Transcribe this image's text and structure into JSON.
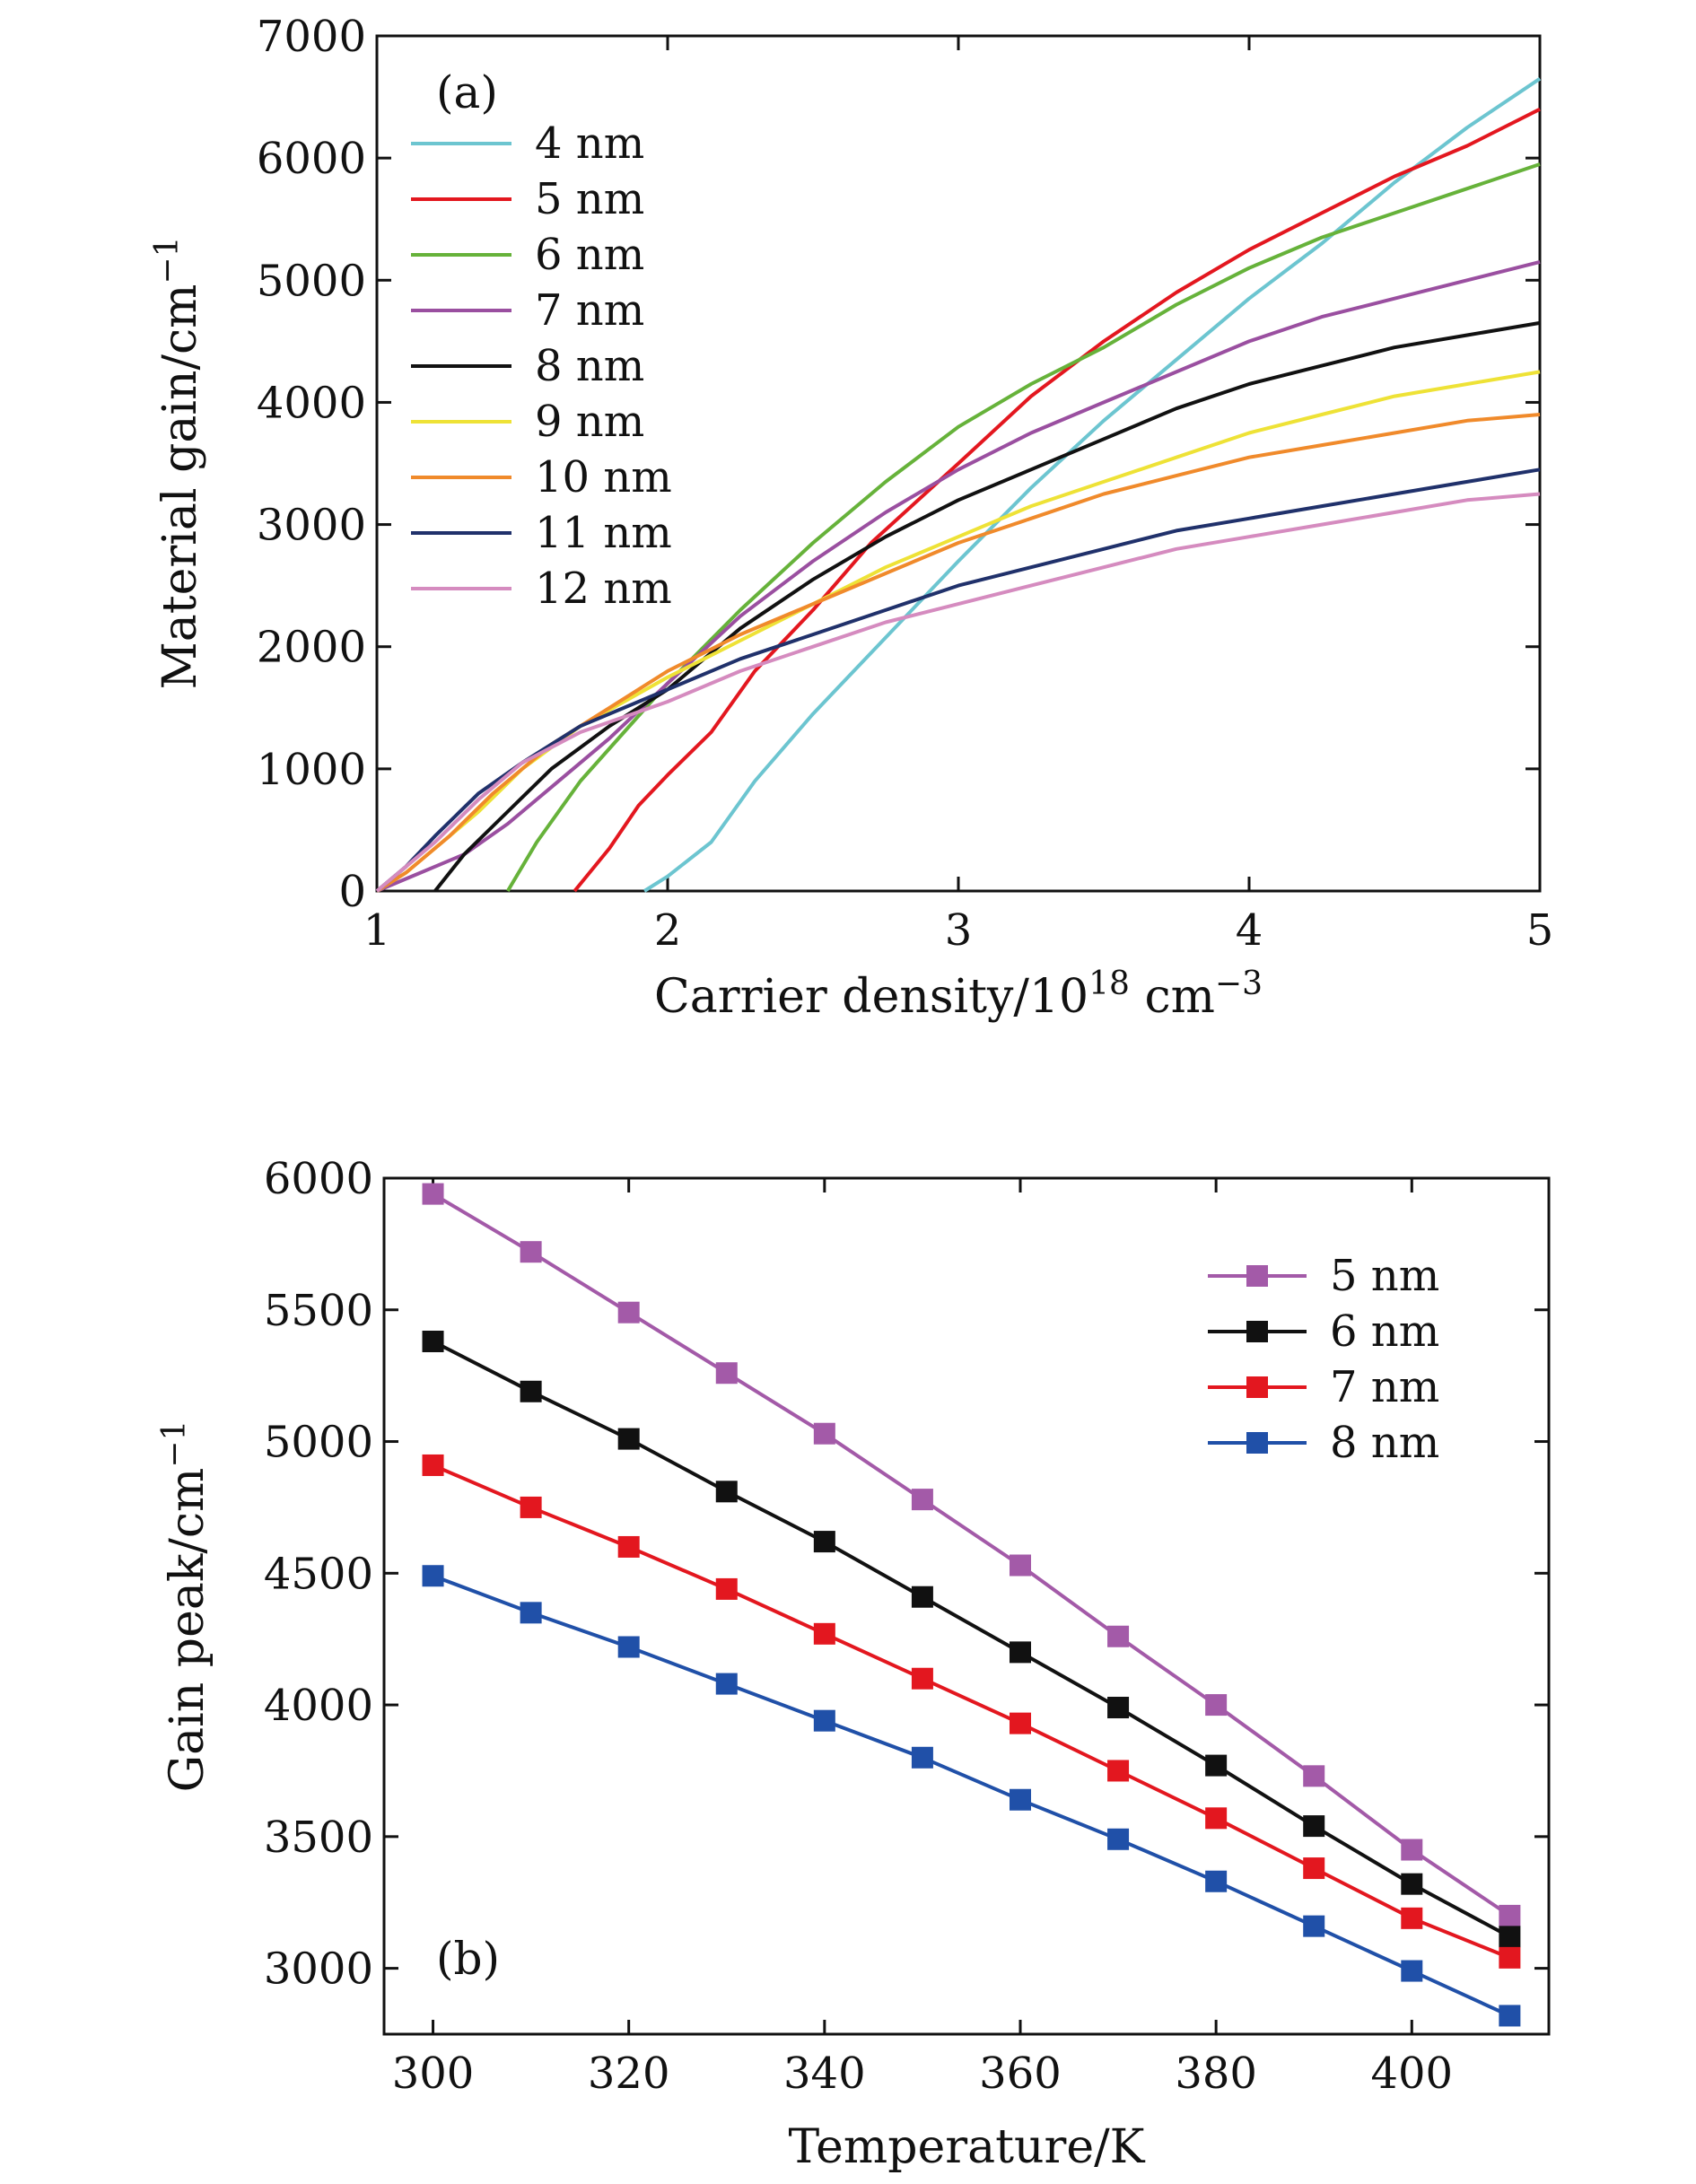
{
  "chart_data": [
    {
      "type": "line",
      "panel_label": "(a)",
      "xlabel": "Carrier density/10",
      "xlabel_sup": "18",
      "xlabel_unit": " cm",
      "xlabel_unit_sup": "−3",
      "ylabel": "Material gain/cm",
      "ylabel_sup": "−1",
      "xlim": [
        1,
        5
      ],
      "ylim": [
        0,
        7000
      ],
      "xticks": [
        "1",
        "2",
        "3",
        "4",
        "5"
      ],
      "yticks": [
        "0",
        "1000",
        "2000",
        "3000",
        "4000",
        "5000",
        "6000",
        "7000"
      ],
      "legend_position": "top-left",
      "series": [
        {
          "name": "4 nm",
          "color": "#6cc5d0",
          "points": [
            [
              1.92,
              0
            ],
            [
              2.0,
              120
            ],
            [
              2.15,
              400
            ],
            [
              2.3,
              900
            ],
            [
              2.5,
              1450
            ],
            [
              2.7,
              1950
            ],
            [
              3.0,
              2700
            ],
            [
              3.25,
              3300
            ],
            [
              3.5,
              3850
            ],
            [
              3.75,
              4350
            ],
            [
              4.0,
              4850
            ],
            [
              4.25,
              5300
            ],
            [
              4.5,
              5800
            ],
            [
              4.75,
              6250
            ],
            [
              5.0,
              6650
            ]
          ]
        },
        {
          "name": "5 nm",
          "color": "#e3171f",
          "points": [
            [
              1.68,
              0
            ],
            [
              1.8,
              350
            ],
            [
              1.9,
              700
            ],
            [
              2.0,
              950
            ],
            [
              2.15,
              1300
            ],
            [
              2.3,
              1800
            ],
            [
              2.5,
              2300
            ],
            [
              2.7,
              2850
            ],
            [
              3.0,
              3500
            ],
            [
              3.25,
              4050
            ],
            [
              3.5,
              4500
            ],
            [
              3.75,
              4900
            ],
            [
              4.0,
              5250
            ],
            [
              4.25,
              5550
            ],
            [
              4.5,
              5850
            ],
            [
              4.75,
              6100
            ],
            [
              5.0,
              6400
            ]
          ]
        },
        {
          "name": "6 nm",
          "color": "#66b23a",
          "points": [
            [
              1.45,
              0
            ],
            [
              1.55,
              400
            ],
            [
              1.7,
              900
            ],
            [
              1.85,
              1300
            ],
            [
              2.0,
              1700
            ],
            [
              2.25,
              2300
            ],
            [
              2.5,
              2850
            ],
            [
              2.75,
              3350
            ],
            [
              3.0,
              3800
            ],
            [
              3.25,
              4150
            ],
            [
              3.5,
              4450
            ],
            [
              3.75,
              4800
            ],
            [
              4.0,
              5100
            ],
            [
              4.25,
              5350
            ],
            [
              4.5,
              5550
            ],
            [
              4.75,
              5750
            ],
            [
              5.0,
              5950
            ]
          ]
        },
        {
          "name": "7 nm",
          "color": "#9a4fa0",
          "points": [
            [
              1.0,
              0
            ],
            [
              1.15,
              150
            ],
            [
              1.3,
              300
            ],
            [
              1.45,
              550
            ],
            [
              1.6,
              850
            ],
            [
              1.8,
              1250
            ],
            [
              2.0,
              1700
            ],
            [
              2.25,
              2250
            ],
            [
              2.5,
              2700
            ],
            [
              2.75,
              3100
            ],
            [
              3.0,
              3450
            ],
            [
              3.25,
              3750
            ],
            [
              3.5,
              4000
            ],
            [
              3.75,
              4250
            ],
            [
              4.0,
              4500
            ],
            [
              4.25,
              4700
            ],
            [
              4.5,
              4850
            ],
            [
              4.75,
              5000
            ],
            [
              5.0,
              5150
            ]
          ]
        },
        {
          "name": "8 nm",
          "color": "#111111",
          "points": [
            [
              1.2,
              0
            ],
            [
              1.3,
              300
            ],
            [
              1.45,
              650
            ],
            [
              1.6,
              1000
            ],
            [
              1.8,
              1350
            ],
            [
              2.0,
              1650
            ],
            [
              2.25,
              2150
            ],
            [
              2.5,
              2550
            ],
            [
              2.75,
              2900
            ],
            [
              3.0,
              3200
            ],
            [
              3.25,
              3450
            ],
            [
              3.5,
              3700
            ],
            [
              3.75,
              3950
            ],
            [
              4.0,
              4150
            ],
            [
              4.25,
              4300
            ],
            [
              4.5,
              4450
            ],
            [
              4.75,
              4550
            ],
            [
              5.0,
              4650
            ]
          ]
        },
        {
          "name": "9 nm",
          "color": "#eee236",
          "points": [
            [
              1.0,
              0
            ],
            [
              1.1,
              150
            ],
            [
              1.2,
              350
            ],
            [
              1.35,
              650
            ],
            [
              1.5,
              1000
            ],
            [
              1.7,
              1350
            ],
            [
              2.0,
              1750
            ],
            [
              2.25,
              2050
            ],
            [
              2.5,
              2350
            ],
            [
              2.75,
              2650
            ],
            [
              3.0,
              2900
            ],
            [
              3.25,
              3150
            ],
            [
              3.5,
              3350
            ],
            [
              3.75,
              3550
            ],
            [
              4.0,
              3750
            ],
            [
              4.25,
              3900
            ],
            [
              4.5,
              4050
            ],
            [
              4.75,
              4150
            ],
            [
              5.0,
              4250
            ]
          ]
        },
        {
          "name": "10 nm",
          "color": "#f08a2b",
          "points": [
            [
              1.0,
              0
            ],
            [
              1.1,
              150
            ],
            [
              1.25,
              450
            ],
            [
              1.4,
              800
            ],
            [
              1.6,
              1200
            ],
            [
              1.8,
              1500
            ],
            [
              2.0,
              1800
            ],
            [
              2.25,
              2100
            ],
            [
              2.5,
              2350
            ],
            [
              2.75,
              2600
            ],
            [
              3.0,
              2850
            ],
            [
              3.25,
              3050
            ],
            [
              3.5,
              3250
            ],
            [
              3.75,
              3400
            ],
            [
              4.0,
              3550
            ],
            [
              4.25,
              3650
            ],
            [
              4.5,
              3750
            ],
            [
              4.75,
              3850
            ],
            [
              5.0,
              3900
            ]
          ]
        },
        {
          "name": "11 nm",
          "color": "#20316b",
          "points": [
            [
              1.0,
              0
            ],
            [
              1.1,
              200
            ],
            [
              1.2,
              450
            ],
            [
              1.35,
              800
            ],
            [
              1.5,
              1050
            ],
            [
              1.7,
              1350
            ],
            [
              2.0,
              1650
            ],
            [
              2.25,
              1900
            ],
            [
              2.5,
              2100
            ],
            [
              2.75,
              2300
            ],
            [
              3.0,
              2500
            ],
            [
              3.25,
              2650
            ],
            [
              3.5,
              2800
            ],
            [
              3.75,
              2950
            ],
            [
              4.0,
              3050
            ],
            [
              4.25,
              3150
            ],
            [
              4.5,
              3250
            ],
            [
              4.75,
              3350
            ],
            [
              5.0,
              3450
            ]
          ]
        },
        {
          "name": "12 nm",
          "color": "#d58bbf",
          "points": [
            [
              1.0,
              0
            ],
            [
              1.1,
              200
            ],
            [
              1.2,
              400
            ],
            [
              1.35,
              750
            ],
            [
              1.5,
              1050
            ],
            [
              1.7,
              1300
            ],
            [
              2.0,
              1550
            ],
            [
              2.25,
              1800
            ],
            [
              2.5,
              2000
            ],
            [
              2.75,
              2200
            ],
            [
              3.0,
              2350
            ],
            [
              3.25,
              2500
            ],
            [
              3.5,
              2650
            ],
            [
              3.75,
              2800
            ],
            [
              4.0,
              2900
            ],
            [
              4.25,
              3000
            ],
            [
              4.5,
              3100
            ],
            [
              4.75,
              3200
            ],
            [
              5.0,
              3250
            ]
          ]
        }
      ]
    },
    {
      "type": "line",
      "panel_label": "(b)",
      "xlabel": "Temperature/K",
      "ylabel": "Gain peak/cm",
      "ylabel_sup": "−1",
      "xlim": [
        295,
        414
      ],
      "ylim": [
        2750,
        6000
      ],
      "xticks": [
        "300",
        "320",
        "340",
        "360",
        "380",
        "400"
      ],
      "yticks": [
        "3000",
        "3500",
        "4000",
        "4500",
        "5000",
        "5500",
        "6000"
      ],
      "legend_position": "top-right",
      "x": [
        300,
        310,
        320,
        330,
        340,
        350,
        360,
        370,
        380,
        390,
        400,
        410
      ],
      "series": [
        {
          "name": "5 nm",
          "color": "#a35aa8",
          "values": [
            5940,
            5720,
            5490,
            5260,
            5030,
            4780,
            4530,
            4260,
            4000,
            3730,
            3450,
            3200
          ]
        },
        {
          "name": "6 nm",
          "color": "#111111",
          "values": [
            5380,
            5190,
            5010,
            4810,
            4620,
            4410,
            4200,
            3990,
            3770,
            3540,
            3320,
            3120
          ]
        },
        {
          "name": "7 nm",
          "color": "#e3171f",
          "values": [
            4910,
            4750,
            4600,
            4440,
            4270,
            4100,
            3930,
            3750,
            3570,
            3380,
            3190,
            3040
          ]
        },
        {
          "name": "8 nm",
          "color": "#2050a8",
          "values": [
            4490,
            4350,
            4220,
            4080,
            3940,
            3800,
            3640,
            3490,
            3330,
            3160,
            2990,
            2820
          ]
        }
      ]
    }
  ]
}
